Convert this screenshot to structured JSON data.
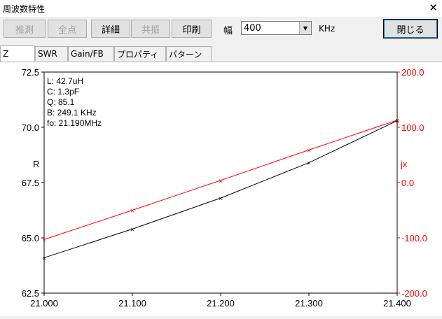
{
  "window": {
    "title": "周波数特性",
    "close_glyph": "✕"
  },
  "toolbar": {
    "buttons": [
      {
        "label": "推測",
        "enabled": false
      },
      {
        "label": "全点",
        "enabled": false
      },
      {
        "label": "詳細",
        "enabled": true
      },
      {
        "label": "共振",
        "enabled": false
      },
      {
        "label": "印刷",
        "enabled": true
      }
    ],
    "width_label": "幅",
    "width_value": "400",
    "width_unit": "KHz",
    "close_label": "閉じる"
  },
  "tabs": [
    "Z",
    "SWR",
    "Gain/FB",
    "プロパティ",
    "パターン"
  ],
  "active_tab": "Z",
  "info": [
    "L: 42.7uH",
    "C: 1.3pF",
    "Q: 85.1",
    "B: 249.1 KHz",
    "fo: 21.190MHz"
  ],
  "chart_data": {
    "type": "line",
    "x": [
      21.0,
      21.1,
      21.2,
      21.3,
      21.4
    ],
    "x_tick_labels": [
      "21.000",
      "21.100",
      "21.200",
      "21.300",
      "21.400"
    ],
    "left_axis": {
      "label": "R",
      "range": [
        62.5,
        72.5
      ],
      "ticks": [
        "62.5",
        "65.0",
        "67.5",
        "70.0",
        "72.5"
      ],
      "color": "#000000"
    },
    "right_axis": {
      "label": "jx",
      "range": [
        -200,
        200
      ],
      "ticks": [
        "-200.0",
        "-100.0",
        "0.0",
        "100.0",
        "200.0"
      ],
      "color": "#ff0000"
    },
    "series": [
      {
        "axis": "left",
        "color": "#000000",
        "values": [
          64.1,
          65.4,
          66.8,
          68.4,
          70.3
        ]
      },
      {
        "axis": "right",
        "color": "#ff0000",
        "values": [
          -103,
          -50,
          4,
          59,
          113
        ]
      }
    ]
  }
}
